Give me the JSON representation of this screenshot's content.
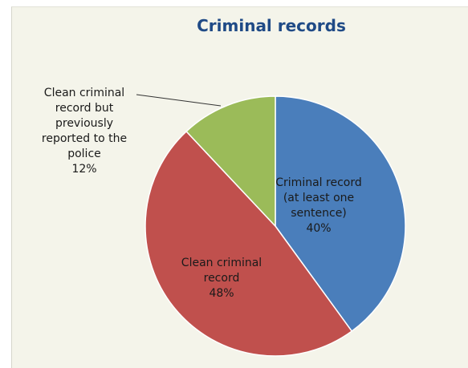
{
  "chart_data": {
    "type": "pie",
    "title": "Criminal records",
    "start_angle_deg": 0,
    "direction": "clockwise",
    "slices": [
      {
        "lines": [
          "Criminal record",
          "(at least one",
          "sentence)"
        ],
        "pct_label": "40%",
        "value": 40,
        "color": "#4a7ebb"
      },
      {
        "lines": [
          "Clean criminal",
          "record"
        ],
        "pct_label": "48%",
        "value": 48,
        "color": "#c0504d"
      },
      {
        "lines": [
          "Clean criminal",
          "record but",
          "previously",
          "reported to the",
          "police"
        ],
        "pct_label": "12%",
        "value": 12,
        "color": "#9bbb59"
      }
    ]
  }
}
